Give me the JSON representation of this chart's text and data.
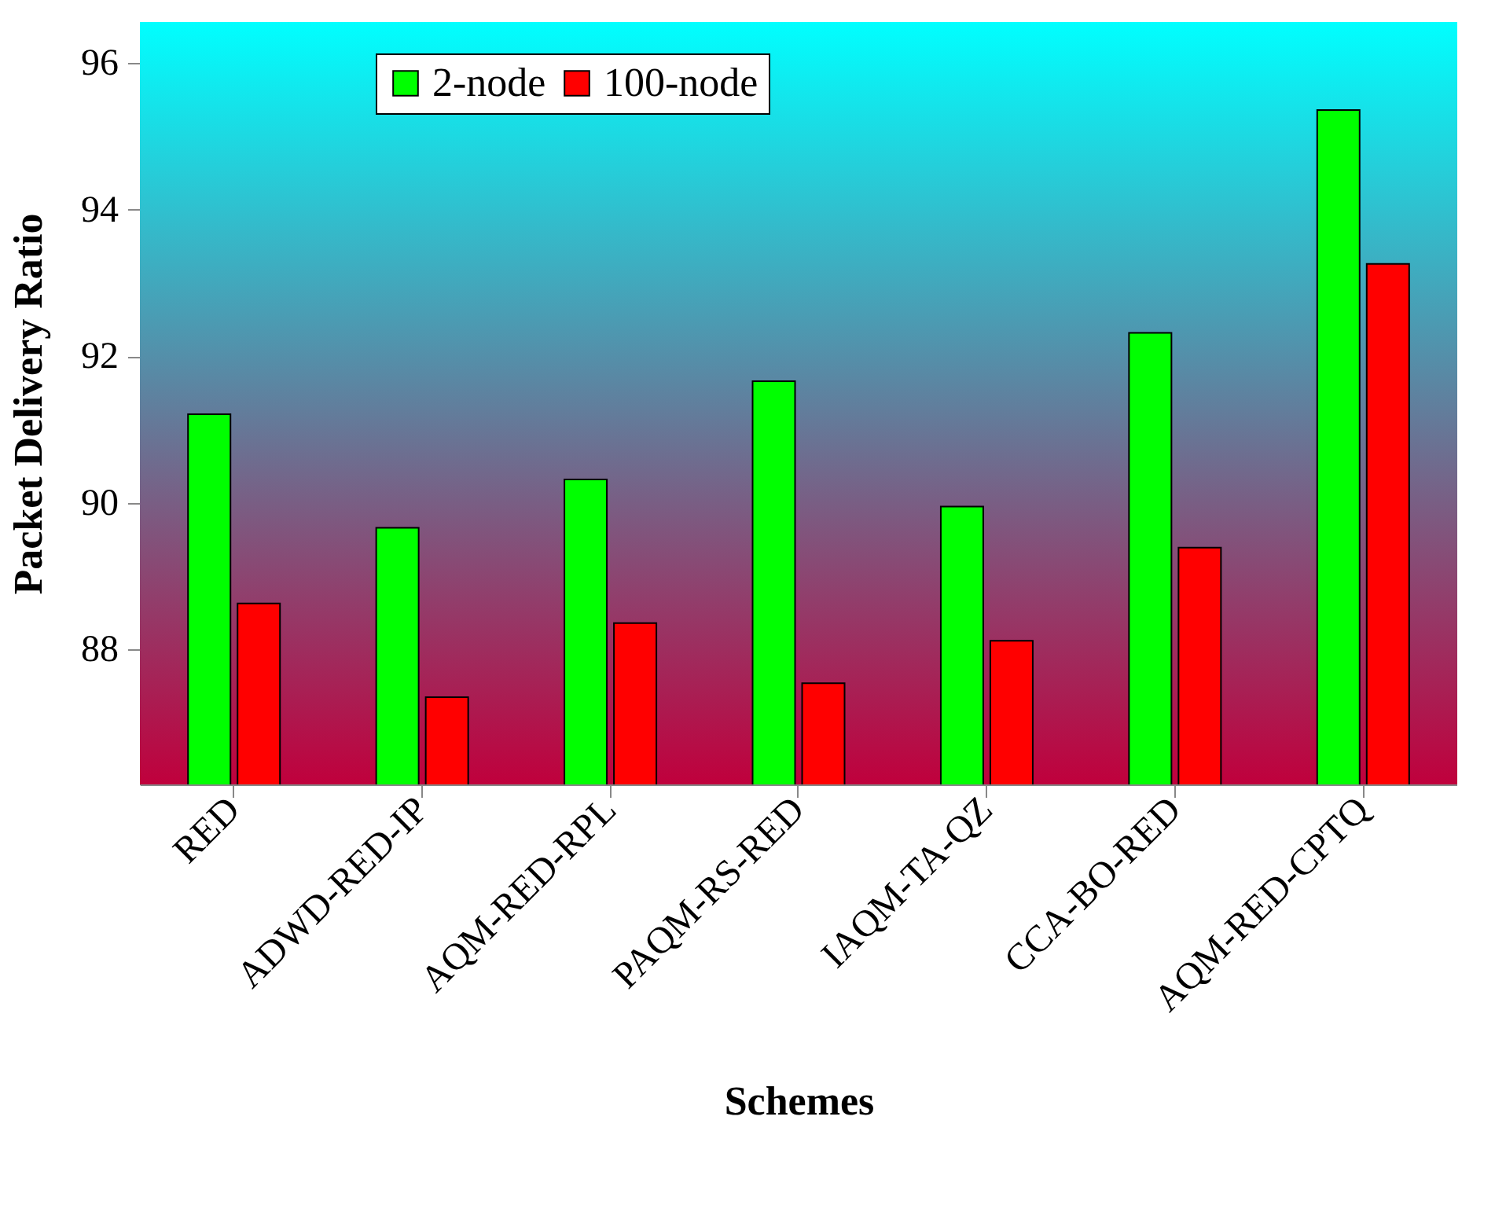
{
  "chart_data": {
    "type": "bar",
    "xlabel": "Schemes",
    "ylabel": "Packet Delivery Ratio",
    "categories": [
      "RED",
      "ADWD-RED-IP",
      "AQM-RED-RPL",
      "PAQM-RS-RED",
      "IAQM-TA-QZ",
      "CCA-BO-RED",
      "AQM-RED-CPTQ"
    ],
    "series": [
      {
        "name": "2-node",
        "color": "#00ff00",
        "values": [
          91.21,
          89.66,
          90.32,
          91.66,
          89.95,
          92.32,
          95.36
        ]
      },
      {
        "name": "100-node",
        "color": "#ff0000",
        "values": [
          88.63,
          87.35,
          88.36,
          87.54,
          88.12,
          89.39,
          93.26
        ]
      }
    ],
    "ylim": [
      86.16,
      96.56
    ],
    "yticks": [
      88,
      90,
      92,
      94,
      96
    ],
    "legend": "top left"
  }
}
